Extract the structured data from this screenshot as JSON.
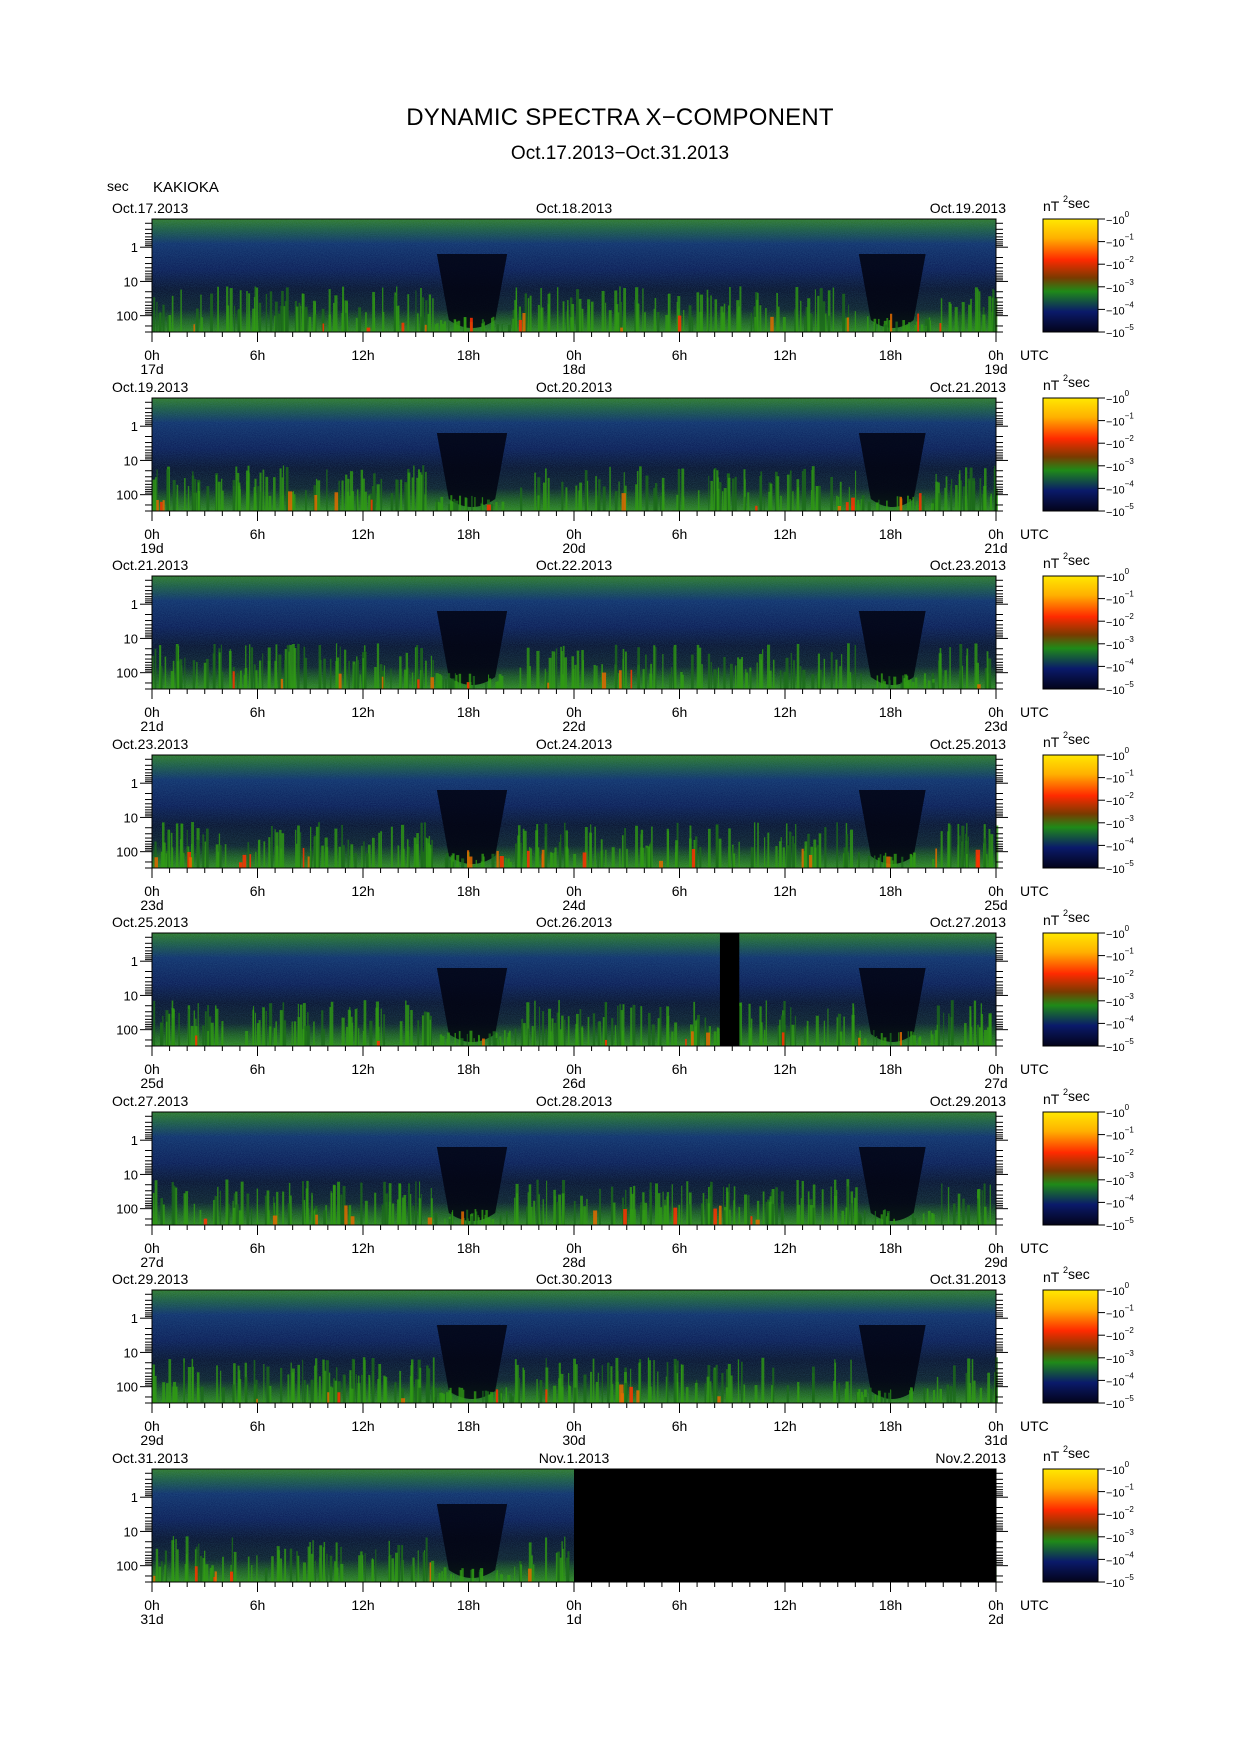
{
  "header": {
    "title": "DYNAMIC SPECTRA X−COMPONENT",
    "subtitle": "Oct.17.2013−Oct.31.2013",
    "y_unit": "sec",
    "station": "KAKIOKA"
  },
  "colors": {
    "background_dark": "#03031a",
    "low_power": "#0a1a6a",
    "mid_power": "#1f8a18",
    "high_power": "#ff2a00",
    "max_power": "#ffe800",
    "no_data": "#000000"
  },
  "chart_data": {
    "type": "heatmap",
    "quantity": "power spectral density of geomagnetic X-component",
    "y_axis": {
      "label": "sec",
      "scale": "log",
      "ticks": [
        1,
        10,
        100
      ],
      "tick_labels": [
        "1",
        "10",
        "100"
      ],
      "range": [
        0.15,
        300
      ],
      "inverted_period_axis": true
    },
    "x_axis": {
      "unit": "UTC",
      "tick_labels": [
        "0h",
        "6h",
        "12h",
        "18h",
        "0h",
        "6h",
        "12h",
        "18h",
        "0h"
      ],
      "tick_hours": [
        0,
        6,
        12,
        18,
        24,
        30,
        36,
        42,
        48
      ],
      "range_hours": [
        0,
        48
      ]
    },
    "colorbar": {
      "unit": "nT",
      "unit_power": "2",
      "unit_suffix": "sec",
      "scale": "log",
      "range": [
        1e-05,
        1
      ],
      "tick_labels": [
        {
          "base": "10",
          "exp": "0"
        },
        {
          "base": "10",
          "exp": "−1"
        },
        {
          "base": "10",
          "exp": "−2"
        },
        {
          "base": "10",
          "exp": "−3"
        },
        {
          "base": "10",
          "exp": "−4"
        },
        {
          "base": "10",
          "exp": "−5"
        }
      ]
    },
    "panels": [
      {
        "start_date": "Oct.17.2013",
        "mid_date": "Oct.18.2013",
        "end_date": "Oct.19.2013",
        "day_labels": [
          "17d",
          "18d",
          "19d"
        ],
        "no_data_hours": []
      },
      {
        "start_date": "Oct.19.2013",
        "mid_date": "Oct.20.2013",
        "end_date": "Oct.21.2013",
        "day_labels": [
          "19d",
          "20d",
          "21d"
        ],
        "no_data_hours": []
      },
      {
        "start_date": "Oct.21.2013",
        "mid_date": "Oct.22.2013",
        "end_date": "Oct.23.2013",
        "day_labels": [
          "21d",
          "22d",
          "23d"
        ],
        "no_data_hours": []
      },
      {
        "start_date": "Oct.23.2013",
        "mid_date": "Oct.24.2013",
        "end_date": "Oct.25.2013",
        "day_labels": [
          "23d",
          "24d",
          "25d"
        ],
        "no_data_hours": []
      },
      {
        "start_date": "Oct.25.2013",
        "mid_date": "Oct.26.2013",
        "end_date": "Oct.27.2013",
        "day_labels": [
          "25d",
          "26d",
          "27d"
        ],
        "no_data_hours": [
          [
            32.3,
            33.4
          ]
        ]
      },
      {
        "start_date": "Oct.27.2013",
        "mid_date": "Oct.28.2013",
        "end_date": "Oct.29.2013",
        "day_labels": [
          "27d",
          "28d",
          "29d"
        ],
        "no_data_hours": []
      },
      {
        "start_date": "Oct.29.2013",
        "mid_date": "Oct.30.2013",
        "end_date": "Oct.31.2013",
        "day_labels": [
          "29d",
          "30d",
          "31d"
        ],
        "no_data_hours": []
      },
      {
        "start_date": "Oct.31.2013",
        "mid_date": "Nov.1.2013",
        "end_date": "Nov.2.2013",
        "day_labels": [
          "31d",
          "1d",
          "2d"
        ],
        "no_data_hours": [
          [
            24,
            48
          ]
        ]
      }
    ]
  }
}
